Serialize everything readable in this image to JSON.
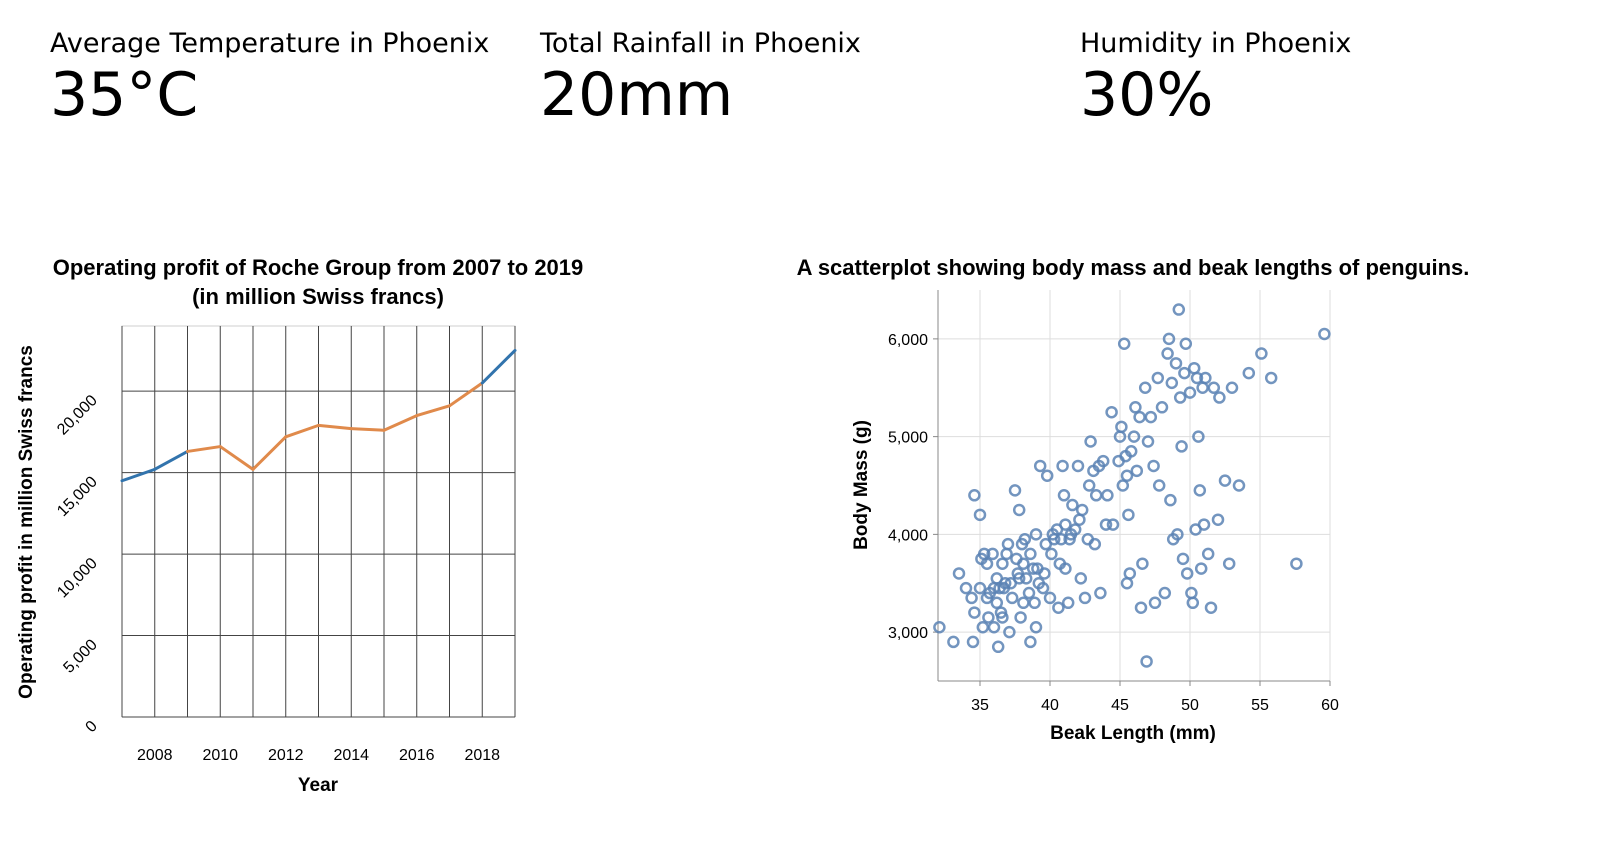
{
  "kpis": [
    {
      "label": "Average Temperature in Phoenix",
      "value": "35°C"
    },
    {
      "label": "Total Rainfall in Phoenix",
      "value": "20mm"
    },
    {
      "label": "Humidity in Phoenix",
      "value": "30%"
    }
  ],
  "colors": {
    "orange": "#e08a4b",
    "blue": "#3274ad",
    "grid": "#444444",
    "scatter": "#5b82b4",
    "light_grid": "#dddddd"
  },
  "chart_data": [
    {
      "type": "line",
      "title": "Operating profit of Roche Group from 2007 to 2019",
      "subtitle": "(in million Swiss francs)",
      "xlabel": "Year",
      "ylabel": "Operating profit in million Swiss francs",
      "x": [
        2007,
        2008,
        2009,
        2010,
        2011,
        2012,
        2013,
        2014,
        2015,
        2016,
        2017,
        2018,
        2019
      ],
      "y": [
        14500,
        15200,
        16300,
        16600,
        15200,
        17200,
        17900,
        17700,
        17600,
        18500,
        19100,
        20500,
        22500
      ],
      "segment_colors": [
        "blue",
        "blue",
        "orange",
        "orange",
        "orange",
        "orange",
        "orange",
        "orange",
        "orange",
        "orange",
        "orange",
        "blue"
      ],
      "xlim": [
        2007,
        2019
      ],
      "ylim": [
        0,
        24000
      ],
      "xticks": [
        "2008",
        "2010",
        "2012",
        "2014",
        "2016",
        "2018"
      ],
      "yticks": [
        "0",
        "5,000",
        "10,000",
        "15,000",
        "20,000"
      ],
      "grid": true
    },
    {
      "type": "scatter",
      "title": "A scatterplot showing body mass and beak lengths of penguins.",
      "xlabel": "Beak Length (mm)",
      "ylabel": "Body Mass (g)",
      "xlim": [
        32,
        60
      ],
      "ylim": [
        2500,
        6500
      ],
      "xticks": [
        "35",
        "40",
        "45",
        "50",
        "55",
        "60"
      ],
      "yticks": [
        "3,000",
        "4,000",
        "5,000",
        "6,000"
      ],
      "grid": true,
      "points": [
        [
          32.1,
          3050
        ],
        [
          33.1,
          2900
        ],
        [
          33.5,
          3600
        ],
        [
          34.0,
          3450
        ],
        [
          34.4,
          3350
        ],
        [
          34.5,
          2900
        ],
        [
          34.6,
          4400
        ],
        [
          34.6,
          3200
        ],
        [
          35.0,
          4200
        ],
        [
          35.0,
          3450
        ],
        [
          35.1,
          3750
        ],
        [
          35.2,
          3050
        ],
        [
          35.3,
          3800
        ],
        [
          35.5,
          3350
        ],
        [
          35.5,
          3700
        ],
        [
          35.6,
          3150
        ],
        [
          35.7,
          3400
        ],
        [
          35.9,
          3800
        ],
        [
          36.0,
          3450
        ],
        [
          36.0,
          3050
        ],
        [
          36.2,
          3550
        ],
        [
          36.2,
          3300
        ],
        [
          36.3,
          2850
        ],
        [
          36.4,
          3450
        ],
        [
          36.5,
          3200
        ],
        [
          36.6,
          3700
        ],
        [
          36.6,
          3150
        ],
        [
          36.7,
          3450
        ],
        [
          36.8,
          3500
        ],
        [
          36.9,
          3800
        ],
        [
          37.0,
          3900
        ],
        [
          37.1,
          3000
        ],
        [
          37.2,
          3500
        ],
        [
          37.3,
          3350
        ],
        [
          37.5,
          4450
        ],
        [
          37.6,
          3750
        ],
        [
          37.7,
          3600
        ],
        [
          37.8,
          3550
        ],
        [
          37.8,
          4250
        ],
        [
          37.9,
          3150
        ],
        [
          38.0,
          3900
        ],
        [
          38.1,
          3700
        ],
        [
          38.1,
          3300
        ],
        [
          38.2,
          3950
        ],
        [
          38.3,
          3550
        ],
        [
          38.5,
          3400
        ],
        [
          38.6,
          3800
        ],
        [
          38.6,
          2900
        ],
        [
          38.8,
          3650
        ],
        [
          38.9,
          3300
        ],
        [
          39.0,
          4000
        ],
        [
          39.0,
          3050
        ],
        [
          39.1,
          3650
        ],
        [
          39.2,
          3500
        ],
        [
          39.3,
          4700
        ],
        [
          39.5,
          3450
        ],
        [
          39.6,
          3600
        ],
        [
          39.7,
          3900
        ],
        [
          39.8,
          4600
        ],
        [
          40.0,
          3350
        ],
        [
          40.1,
          3800
        ],
        [
          40.2,
          4000
        ],
        [
          40.3,
          3950
        ],
        [
          40.5,
          4050
        ],
        [
          40.6,
          3250
        ],
        [
          40.7,
          3700
        ],
        [
          40.8,
          3950
        ],
        [
          40.9,
          4700
        ],
        [
          41.0,
          4400
        ],
        [
          41.1,
          3650
        ],
        [
          41.1,
          4100
        ],
        [
          41.3,
          3300
        ],
        [
          41.4,
          3950
        ],
        [
          41.5,
          4000
        ],
        [
          41.6,
          4300
        ],
        [
          41.8,
          4050
        ],
        [
          42.0,
          4700
        ],
        [
          42.1,
          4150
        ],
        [
          42.2,
          3550
        ],
        [
          42.3,
          4250
        ],
        [
          42.5,
          3350
        ],
        [
          42.7,
          3950
        ],
        [
          42.8,
          4500
        ],
        [
          42.9,
          4950
        ],
        [
          43.1,
          4650
        ],
        [
          43.2,
          3900
        ],
        [
          43.3,
          4400
        ],
        [
          43.5,
          4700
        ],
        [
          43.6,
          3400
        ],
        [
          43.8,
          4750
        ],
        [
          44.0,
          4100
        ],
        [
          44.1,
          4400
        ],
        [
          44.4,
          5250
        ],
        [
          44.5,
          4100
        ],
        [
          44.9,
          4750
        ],
        [
          45.0,
          5000
        ],
        [
          45.1,
          5100
        ],
        [
          45.2,
          4500
        ],
        [
          45.3,
          5950
        ],
        [
          45.4,
          4800
        ],
        [
          45.5,
          4600
        ],
        [
          45.5,
          3500
        ],
        [
          45.6,
          4200
        ],
        [
          45.7,
          3600
        ],
        [
          45.8,
          4850
        ],
        [
          46.0,
          5000
        ],
        [
          46.1,
          5300
        ],
        [
          46.2,
          4650
        ],
        [
          46.4,
          5200
        ],
        [
          46.5,
          3250
        ],
        [
          46.6,
          3700
        ],
        [
          46.8,
          5500
        ],
        [
          46.9,
          2700
        ],
        [
          47.0,
          4950
        ],
        [
          47.2,
          5200
        ],
        [
          47.4,
          4700
        ],
        [
          47.5,
          3300
        ],
        [
          47.7,
          5600
        ],
        [
          47.8,
          4500
        ],
        [
          48.0,
          5300
        ],
        [
          48.2,
          3400
        ],
        [
          48.4,
          5850
        ],
        [
          48.5,
          6000
        ],
        [
          48.6,
          4350
        ],
        [
          48.7,
          5550
        ],
        [
          48.8,
          3950
        ],
        [
          49.0,
          5750
        ],
        [
          49.1,
          4000
        ],
        [
          49.2,
          6300
        ],
        [
          49.3,
          5400
        ],
        [
          49.4,
          4900
        ],
        [
          49.5,
          3750
        ],
        [
          49.6,
          5650
        ],
        [
          49.7,
          5950
        ],
        [
          49.8,
          3600
        ],
        [
          50.0,
          5450
        ],
        [
          50.1,
          3400
        ],
        [
          50.2,
          3300
        ],
        [
          50.3,
          5700
        ],
        [
          50.4,
          4050
        ],
        [
          50.5,
          5600
        ],
        [
          50.6,
          5000
        ],
        [
          50.7,
          4450
        ],
        [
          50.8,
          3650
        ],
        [
          50.9,
          5500
        ],
        [
          51.0,
          4100
        ],
        [
          51.1,
          5600
        ],
        [
          51.3,
          3800
        ],
        [
          51.5,
          3250
        ],
        [
          51.7,
          5500
        ],
        [
          52.0,
          4150
        ],
        [
          52.1,
          5400
        ],
        [
          52.5,
          4550
        ],
        [
          52.8,
          3700
        ],
        [
          53.0,
          5500
        ],
        [
          53.5,
          4500
        ],
        [
          54.2,
          5650
        ],
        [
          55.1,
          5850
        ],
        [
          55.8,
          5600
        ],
        [
          57.6,
          3700
        ],
        [
          59.6,
          6050
        ]
      ]
    }
  ]
}
